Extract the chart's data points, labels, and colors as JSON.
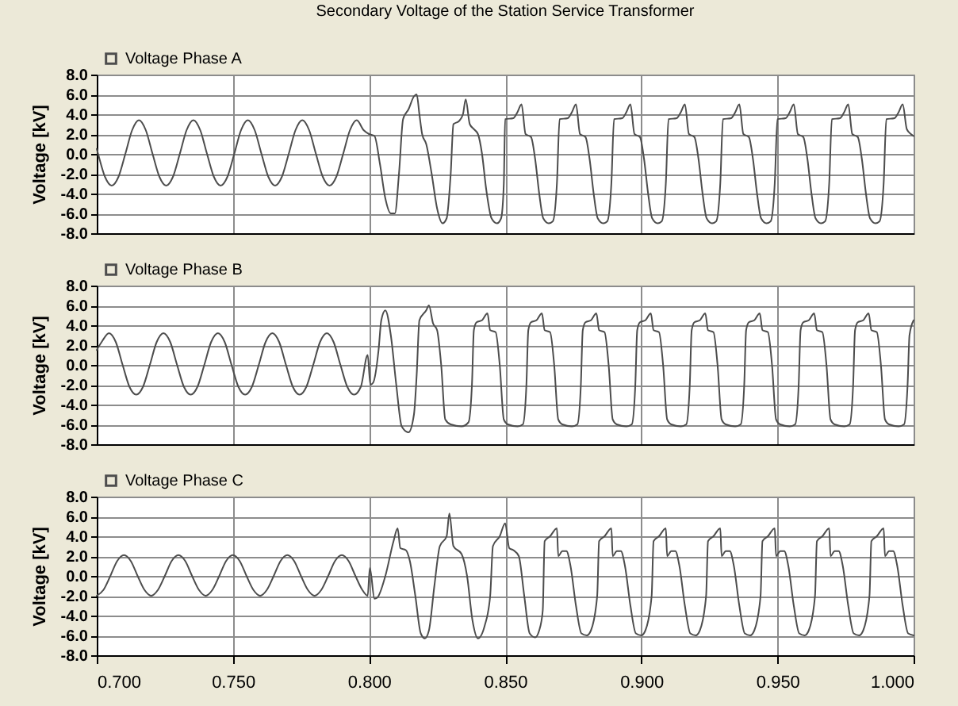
{
  "chart_data": [
    {
      "type": "line",
      "title": "Secondary Voltage of the Station Service Transformer",
      "ylabel": "Voltage [kV]",
      "xlim": [
        0.7,
        1.0
      ],
      "ylim": [
        -8,
        8
      ],
      "xticks": [
        {
          "value": 0.7,
          "label": null
        },
        {
          "value": 0.75,
          "label": null
        },
        {
          "value": 0.8,
          "label": null
        },
        {
          "value": 0.85,
          "label": null
        },
        {
          "value": 0.9,
          "label": null
        },
        {
          "value": 0.95,
          "label": null
        },
        {
          "value": 1.0,
          "label": null
        }
      ],
      "yticks": [
        {
          "value": -8,
          "label": "-8.0"
        },
        {
          "value": -6,
          "label": "-6.0"
        },
        {
          "value": -4,
          "label": "-4.0"
        },
        {
          "value": -2,
          "label": "-2.0"
        },
        {
          "value": 0,
          "label": "0.0"
        },
        {
          "value": 2,
          "label": "2.0"
        },
        {
          "value": 4,
          "label": "4.0"
        },
        {
          "value": 6,
          "label": "6.0"
        },
        {
          "value": 8,
          "label": "8.0"
        }
      ],
      "grid": true,
      "legend": "top left",
      "line_style": "solid",
      "tick_labels": "y",
      "series": [
        {
          "name": "Voltage Phase A",
          "color": "#4d4d4d",
          "x": [
            0.7,
            0.7005,
            0.703,
            0.7055,
            0.708,
            0.7105,
            0.713,
            0.7155,
            0.718,
            0.7205,
            0.723,
            0.7255,
            0.728,
            0.7305,
            0.733,
            0.7355,
            0.738,
            0.7405,
            0.743,
            0.7455,
            0.748,
            0.7505,
            0.753,
            0.7555,
            0.758,
            0.7605,
            0.763,
            0.7655,
            0.768,
            0.7705,
            0.773,
            0.7755,
            0.778,
            0.7805,
            0.783,
            0.7855,
            0.788,
            0.7905,
            0.793,
            0.7955,
            0.798,
            0.8,
            0.802,
            0.804,
            0.806,
            0.808,
            0.8095,
            0.811,
            0.8125,
            0.8145,
            0.8165,
            0.8175,
            0.8185,
            0.8195,
            0.821,
            0.823,
            0.825,
            0.827,
            0.8285,
            0.83,
            0.831,
            0.833,
            0.8345,
            0.8355,
            0.837,
            0.8385,
            0.84,
            0.8415,
            0.843,
            0.845,
            0.847,
            0.8485,
            0.8495,
            0.85,
            0.853,
            0.8545,
            0.856,
            0.8575,
            0.8595,
            0.861,
            0.8625,
            0.864,
            0.866,
            0.8675,
            0.869,
            0.87,
            0.873,
            0.8745,
            0.876,
            0.8775,
            0.8795,
            0.881,
            0.8825,
            0.884,
            0.886,
            0.8875,
            0.889,
            0.89,
            0.893,
            0.8945,
            0.896,
            0.8975,
            0.8995,
            0.901,
            0.9025,
            0.904,
            0.906,
            0.9075,
            0.909,
            0.91,
            0.913,
            0.9145,
            0.916,
            0.9175,
            0.9195,
            0.921,
            0.9225,
            0.924,
            0.926,
            0.9275,
            0.929,
            0.93,
            0.933,
            0.9345,
            0.936,
            0.9375,
            0.9395,
            0.941,
            0.9425,
            0.944,
            0.946,
            0.9475,
            0.949,
            0.95,
            0.953,
            0.9545,
            0.956,
            0.9575,
            0.9595,
            0.961,
            0.9625,
            0.964,
            0.966,
            0.9675,
            0.969,
            0.97,
            0.973,
            0.9745,
            0.976,
            0.9775,
            0.9795,
            0.981,
            0.9825,
            0.984,
            0.986,
            0.9875,
            0.989,
            0.99,
            0.993,
            0.9945,
            0.996,
            0.9975,
            0.999,
            1.0
          ],
          "values": [
            0.5,
            0,
            -2.3,
            -3.2,
            -2.3,
            0,
            2.4,
            3.4,
            2.4,
            0,
            -2.3,
            -3.2,
            -2.3,
            0,
            2.4,
            3.4,
            2.4,
            0,
            -2.3,
            -3.2,
            -2.3,
            0,
            2.4,
            3.4,
            2.4,
            0,
            -2.3,
            -3.2,
            -2.3,
            0,
            2.4,
            3.4,
            2.4,
            0,
            -2.3,
            -3.2,
            -2.3,
            0,
            2.4,
            3.4,
            2.4,
            2.0,
            1.8,
            -1,
            -4.5,
            -6.0,
            -6.0,
            -2,
            3.5,
            4.5,
            5.8,
            6.0,
            4,
            2.0,
            1.0,
            -2,
            -5.5,
            -7.0,
            -6.5,
            -2,
            3.0,
            3.3,
            4.0,
            5.5,
            3.0,
            2.5,
            2.0,
            0,
            -3.5,
            -6.5,
            -7.0,
            -6.5,
            -3,
            3.5,
            3.6,
            4.2,
            5.0,
            2.0,
            1.7,
            -0.5,
            -4,
            -6.5,
            -7.0,
            -6.8,
            -3,
            3.5,
            3.6,
            4.2,
            5.0,
            2.0,
            1.7,
            -0.5,
            -4,
            -6.5,
            -7.0,
            -6.8,
            -3,
            3.5,
            3.6,
            4.2,
            5.0,
            2.0,
            1.7,
            -0.5,
            -4,
            -6.5,
            -7.0,
            -6.8,
            -3,
            3.5,
            3.6,
            4.2,
            5.0,
            2.0,
            1.7,
            -0.5,
            -4,
            -6.5,
            -7.0,
            -6.8,
            -3,
            3.5,
            3.6,
            4.2,
            5.0,
            2.0,
            1.7,
            -0.5,
            -4,
            -6.5,
            -7.0,
            -6.8,
            -3,
            3.5,
            3.6,
            4.2,
            5.0,
            2.0,
            1.7,
            -0.5,
            -4,
            -6.5,
            -7.0,
            -6.8,
            -3,
            3.5,
            3.6,
            4.2,
            5.0,
            2.0,
            1.7,
            -0.5,
            -4,
            -6.5,
            -7.0,
            -6.8,
            -3,
            3.5,
            3.6,
            4.2,
            5.0,
            2.5,
            2.0,
            1.8
          ]
        }
      ]
    },
    {
      "type": "line",
      "ylabel": "Voltage [kV]",
      "xlim": [
        0.7,
        1.0
      ],
      "ylim": [
        -8,
        8
      ],
      "xticks": [
        {
          "value": 0.7,
          "label": null
        },
        {
          "value": 0.75,
          "label": null
        },
        {
          "value": 0.8,
          "label": null
        },
        {
          "value": 0.85,
          "label": null
        },
        {
          "value": 0.9,
          "label": null
        },
        {
          "value": 0.95,
          "label": null
        },
        {
          "value": 1.0,
          "label": null
        }
      ],
      "yticks": [
        {
          "value": -8,
          "label": "-8.0"
        },
        {
          "value": -6,
          "label": "-6.0"
        },
        {
          "value": -4,
          "label": "-4.0"
        },
        {
          "value": -2,
          "label": "-2.0"
        },
        {
          "value": 0,
          "label": "0.0"
        },
        {
          "value": 2,
          "label": "2.0"
        },
        {
          "value": 4,
          "label": "4.0"
        },
        {
          "value": 6,
          "label": "6.0"
        },
        {
          "value": 8,
          "label": "8.0"
        }
      ],
      "grid": true,
      "legend": "top left",
      "line_style": "solid",
      "tick_labels": "y",
      "series": [
        {
          "name": "Voltage Phase B",
          "color": "#4d4d4d",
          "x": [
            0.7,
            0.702,
            0.7045,
            0.707,
            0.7095,
            0.712,
            0.7145,
            0.717,
            0.7195,
            0.722,
            0.7245,
            0.727,
            0.7295,
            0.732,
            0.7345,
            0.737,
            0.7395,
            0.742,
            0.7445,
            0.747,
            0.7495,
            0.752,
            0.7545,
            0.757,
            0.7595,
            0.762,
            0.7645,
            0.767,
            0.7695,
            0.772,
            0.7745,
            0.777,
            0.7795,
            0.782,
            0.7845,
            0.787,
            0.7895,
            0.792,
            0.7945,
            0.797,
            0.7995,
            0.8005,
            0.8015,
            0.8035,
            0.8045,
            0.806,
            0.808,
            0.81,
            0.812,
            0.8145,
            0.8165,
            0.8175,
            0.8185,
            0.821,
            0.822,
            0.8235,
            0.825,
            0.8265,
            0.828,
            0.83,
            0.834,
            0.8365,
            0.8378,
            0.8385,
            0.8395,
            0.8415,
            0.8435,
            0.8445,
            0.8465,
            0.848,
            0.8495,
            0.851,
            0.8545,
            0.8565,
            0.8578,
            0.8585,
            0.8595,
            0.8615,
            0.8635,
            0.8645,
            0.8665,
            0.868,
            0.8695,
            0.871,
            0.8745,
            0.8765,
            0.8778,
            0.8785,
            0.8795,
            0.8815,
            0.8835,
            0.8845,
            0.8865,
            0.888,
            0.8895,
            0.891,
            0.8945,
            0.8965,
            0.8978,
            0.8985,
            0.8995,
            0.9015,
            0.9035,
            0.9045,
            0.9065,
            0.908,
            0.9095,
            0.911,
            0.9145,
            0.9165,
            0.9178,
            0.9185,
            0.9195,
            0.9215,
            0.9235,
            0.9245,
            0.9265,
            0.928,
            0.9295,
            0.931,
            0.9345,
            0.9365,
            0.9378,
            0.9385,
            0.9395,
            0.9415,
            0.9435,
            0.9445,
            0.9465,
            0.948,
            0.9495,
            0.951,
            0.9545,
            0.9565,
            0.9578,
            0.9585,
            0.9595,
            0.9615,
            0.9635,
            0.9645,
            0.9665,
            0.968,
            0.9695,
            0.971,
            0.9745,
            0.9765,
            0.9778,
            0.9785,
            0.9795,
            0.9815,
            0.9835,
            0.9845,
            0.9865,
            0.988,
            0.9895,
            0.991,
            0.9945,
            0.9965,
            0.9978,
            0.9985,
            1.0
          ],
          "values": [
            1.5,
            2.4,
            3.2,
            2.3,
            0,
            -2.2,
            -3.0,
            -2.2,
            0,
            2.3,
            3.2,
            2.3,
            0,
            -2.2,
            -3.0,
            -2.2,
            0,
            2.3,
            3.2,
            2.3,
            0,
            -2.2,
            -3.0,
            -2.2,
            0,
            2.3,
            3.2,
            2.3,
            0,
            -2.2,
            -3.0,
            -2.2,
            0,
            2.3,
            3.2,
            2.3,
            0,
            -2.2,
            -3.0,
            -2.2,
            1.0,
            -2.0,
            -1.8,
            1.5,
            4.5,
            5.5,
            3,
            -2,
            -6.2,
            -6.8,
            -5,
            -1,
            4.5,
            5.5,
            6.0,
            4.2,
            3.5,
            0,
            -5.5,
            -6.0,
            -6.2,
            -5.8,
            -2,
            3.5,
            4.3,
            4.5,
            5.2,
            3.5,
            3.3,
            0,
            -5.5,
            -6.0,
            -6.2,
            -6.0,
            -2,
            3.5,
            4.3,
            4.5,
            5.2,
            3.5,
            3.3,
            0,
            -5.5,
            -6.0,
            -6.2,
            -6.0,
            -2,
            3.5,
            4.3,
            4.5,
            5.2,
            3.5,
            3.3,
            0,
            -5.5,
            -6.0,
            -6.2,
            -6.0,
            -2,
            3.5,
            4.3,
            4.5,
            5.2,
            3.5,
            3.3,
            0,
            -5.5,
            -6.0,
            -6.2,
            -6.0,
            -2,
            3.5,
            4.3,
            4.5,
            5.2,
            3.5,
            3.3,
            0,
            -5.5,
            -6.0,
            -6.2,
            -6.0,
            -2,
            3.5,
            4.3,
            4.5,
            5.2,
            3.5,
            3.3,
            0,
            -5.5,
            -6.0,
            -6.2,
            -6.0,
            -2,
            3.5,
            4.3,
            4.5,
            5.2,
            3.5,
            3.3,
            0,
            -5.5,
            -6.0,
            -6.2,
            -6.0,
            -2,
            3.5,
            4.3,
            4.5,
            5.2,
            3.5,
            3.3,
            0,
            -5.5,
            -6.0,
            -6.2,
            -6.0,
            -2,
            3.0,
            4.5
          ]
        }
      ]
    },
    {
      "type": "line",
      "ylabel": "Voltage [kV]",
      "xlim": [
        0.7,
        1.0
      ],
      "ylim": [
        -8,
        8
      ],
      "xticks": [
        {
          "value": 0.7,
          "label": "0.700"
        },
        {
          "value": 0.75,
          "label": "0.750"
        },
        {
          "value": 0.8,
          "label": "0.800"
        },
        {
          "value": 0.85,
          "label": "0.850"
        },
        {
          "value": 0.9,
          "label": "0.900"
        },
        {
          "value": 0.95,
          "label": "0.950"
        },
        {
          "value": 1.0,
          "label": "1.000"
        }
      ],
      "yticks": [
        {
          "value": -8,
          "label": "-8.0"
        },
        {
          "value": -6,
          "label": "-6.0"
        },
        {
          "value": -4,
          "label": "-4.0"
        },
        {
          "value": -2,
          "label": "-2.0"
        },
        {
          "value": 0,
          "label": "0.0"
        },
        {
          "value": 2,
          "label": "2.0"
        },
        {
          "value": 4,
          "label": "4.0"
        },
        {
          "value": 6,
          "label": "6.0"
        },
        {
          "value": 8,
          "label": "8.0"
        }
      ],
      "grid": true,
      "legend": "top left",
      "line_style": "solid",
      "series": [
        {
          "name": "Voltage Phase C",
          "color": "#4d4d4d",
          "x": [
            0.7,
            0.7025,
            0.705,
            0.7075,
            0.71,
            0.7125,
            0.715,
            0.7175,
            0.72,
            0.7225,
            0.725,
            0.7275,
            0.73,
            0.7325,
            0.735,
            0.7375,
            0.74,
            0.7425,
            0.745,
            0.7475,
            0.75,
            0.7525,
            0.755,
            0.7575,
            0.76,
            0.7625,
            0.765,
            0.7675,
            0.77,
            0.7725,
            0.775,
            0.7775,
            0.78,
            0.7825,
            0.785,
            0.7875,
            0.79,
            0.7925,
            0.795,
            0.7975,
            0.7995,
            0.8003,
            0.802,
            0.803,
            0.806,
            0.809,
            0.8105,
            0.8115,
            0.8135,
            0.815,
            0.817,
            0.819,
            0.8205,
            0.822,
            0.824,
            0.826,
            0.8285,
            0.8295,
            0.831,
            0.834,
            0.836,
            0.838,
            0.84,
            0.8425,
            0.8445,
            0.8455,
            0.848,
            0.85,
            0.8515,
            0.853,
            0.855,
            0.857,
            0.859,
            0.861,
            0.8625,
            0.8638,
            0.8645,
            0.8665,
            0.869,
            0.8695,
            0.871,
            0.8725,
            0.874,
            0.876,
            0.878,
            0.88,
            0.8815,
            0.8838,
            0.8845,
            0.8865,
            0.889,
            0.8895,
            0.891,
            0.8925,
            0.894,
            0.896,
            0.898,
            0.9,
            0.9015,
            0.9038,
            0.9045,
            0.9065,
            0.909,
            0.9095,
            0.911,
            0.9125,
            0.914,
            0.916,
            0.918,
            0.92,
            0.9215,
            0.9238,
            0.9245,
            0.9265,
            0.929,
            0.9295,
            0.931,
            0.9325,
            0.934,
            0.936,
            0.938,
            0.94,
            0.9415,
            0.9438,
            0.9445,
            0.9465,
            0.949,
            0.9495,
            0.951,
            0.9525,
            0.954,
            0.956,
            0.958,
            0.96,
            0.9615,
            0.9638,
            0.9645,
            0.9665,
            0.969,
            0.9695,
            0.971,
            0.9725,
            0.974,
            0.976,
            0.978,
            0.98,
            0.9815,
            0.9838,
            0.9845,
            0.9865,
            0.989,
            0.9895,
            0.991,
            0.9925,
            0.994,
            0.996,
            0.998,
            1.0
          ],
          "values": [
            -2.0,
            -1.4,
            0,
            1.5,
            2.1,
            1.5,
            0,
            -1.4,
            -2.0,
            -1.4,
            0,
            1.5,
            2.1,
            1.5,
            0,
            -1.4,
            -2.0,
            -1.4,
            0,
            1.5,
            2.1,
            1.5,
            0,
            -1.4,
            -2.0,
            -1.4,
            0,
            1.5,
            2.1,
            1.5,
            0,
            -1.4,
            -2.0,
            -1.4,
            0,
            1.5,
            2.1,
            1.5,
            0,
            -1.4,
            -2.0,
            0.8,
            -2.3,
            -2.2,
            0,
            3.5,
            4.8,
            2.8,
            2.6,
            1.5,
            -2,
            -5.8,
            -6.3,
            -5.5,
            -1,
            3,
            4,
            6.3,
            3,
            2.2,
            0,
            -4.5,
            -6.3,
            -5,
            -2,
            3,
            4,
            5.3,
            2.8,
            2.6,
            2.0,
            -2,
            -5.8,
            -6.2,
            -5.5,
            -3.5,
            3.5,
            4.0,
            4.8,
            2.0,
            2.5,
            2.5,
            1.0,
            -3,
            -5.8,
            -6.0,
            -5.5,
            -2,
            3.5,
            4.0,
            4.8,
            2.0,
            2.5,
            2.5,
            1.0,
            -3,
            -5.8,
            -6.0,
            -5.5,
            -2,
            3.5,
            4.0,
            4.8,
            2.0,
            2.5,
            2.5,
            1.0,
            -3,
            -5.8,
            -6.0,
            -5.5,
            -2,
            3.5,
            4.0,
            4.8,
            2.0,
            2.5,
            2.5,
            1.0,
            -3,
            -5.8,
            -6.0,
            -5.5,
            -2,
            3.5,
            4.0,
            4.8,
            2.0,
            2.5,
            2.5,
            1.0,
            -3,
            -5.8,
            -6.0,
            -5.5,
            -2,
            3.5,
            4.0,
            4.8,
            2.0,
            2.5,
            2.5,
            1.0,
            -3,
            -5.8,
            -6.0,
            -5.5,
            -2,
            3.5,
            4.0,
            4.8,
            2.0,
            2.5,
            2.5,
            1.0,
            -3,
            -5.8,
            -6.0
          ]
        }
      ]
    }
  ]
}
